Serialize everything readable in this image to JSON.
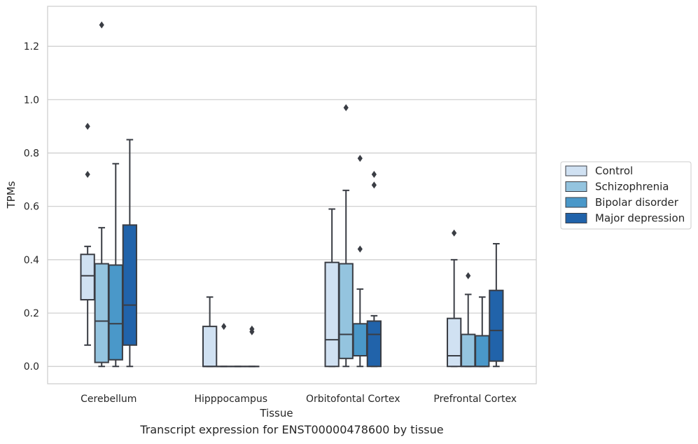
{
  "caption": "Transcript expression for ENST00000478600 by tissue",
  "chart_data": {
    "type": "box",
    "xlabel": "Tissue",
    "ylabel": "TPMs",
    "categories": [
      "Cerebellum",
      "Hipppocampus",
      "Orbitofontal Cortex",
      "Prefrontal Cortex"
    ],
    "ylim": [
      -0.065,
      1.35
    ],
    "yticks": [
      "0.0",
      "0.2",
      "0.4",
      "0.6",
      "0.8",
      "1.0",
      "1.2"
    ],
    "grid": "y",
    "legend_position": "right",
    "series": [
      {
        "name": "Control",
        "color": "#d0e1f2",
        "boxes": [
          {
            "whislo": 0.08,
            "q1": 0.25,
            "med": 0.34,
            "q3": 0.42,
            "whishi": 0.45,
            "fliers": [
              0.72,
              0.9
            ]
          },
          {
            "whislo": 0.0,
            "q1": 0.0,
            "med": 0.0,
            "q3": 0.15,
            "whishi": 0.26,
            "fliers": []
          },
          {
            "whislo": 0.0,
            "q1": 0.0,
            "med": 0.1,
            "q3": 0.39,
            "whishi": 0.59,
            "fliers": []
          },
          {
            "whislo": 0.0,
            "q1": 0.0,
            "med": 0.04,
            "q3": 0.18,
            "whishi": 0.4,
            "fliers": [
              0.5
            ]
          }
        ]
      },
      {
        "name": "Schizophrenia",
        "color": "#94c4df",
        "boxes": [
          {
            "whislo": 0.0,
            "q1": 0.015,
            "med": 0.17,
            "q3": 0.385,
            "whishi": 0.52,
            "fliers": [
              1.28
            ]
          },
          {
            "whislo": 0.0,
            "q1": 0.0,
            "med": 0.0,
            "q3": 0.0,
            "whishi": 0.0,
            "fliers": [
              0.15
            ]
          },
          {
            "whislo": 0.0,
            "q1": 0.03,
            "med": 0.12,
            "q3": 0.385,
            "whishi": 0.66,
            "fliers": [
              0.97
            ]
          },
          {
            "whislo": 0.0,
            "q1": 0.0,
            "med": 0.0,
            "q3": 0.12,
            "whishi": 0.27,
            "fliers": [
              0.34
            ]
          }
        ]
      },
      {
        "name": "Bipolar disorder",
        "color": "#4a98c9",
        "boxes": [
          {
            "whislo": 0.0,
            "q1": 0.025,
            "med": 0.16,
            "q3": 0.38,
            "whishi": 0.76,
            "fliers": []
          },
          {
            "whislo": 0.0,
            "q1": 0.0,
            "med": 0.0,
            "q3": 0.0,
            "whishi": 0.0,
            "fliers": []
          },
          {
            "whislo": 0.0,
            "q1": 0.04,
            "med": 0.04,
            "q3": 0.16,
            "whishi": 0.29,
            "fliers": [
              0.44,
              0.78
            ]
          },
          {
            "whislo": 0.0,
            "q1": 0.0,
            "med": 0.0,
            "q3": 0.115,
            "whishi": 0.26,
            "fliers": []
          }
        ]
      },
      {
        "name": "Major depression",
        "color": "#2163aa",
        "boxes": [
          {
            "whislo": 0.0,
            "q1": 0.08,
            "med": 0.23,
            "q3": 0.53,
            "whishi": 0.85,
            "fliers": []
          },
          {
            "whislo": 0.0,
            "q1": 0.0,
            "med": 0.0,
            "q3": 0.0,
            "whishi": 0.0,
            "fliers": [
              0.13,
              0.14
            ]
          },
          {
            "whislo": 0.0,
            "q1": 0.0,
            "med": 0.12,
            "q3": 0.17,
            "whishi": 0.19,
            "fliers": [
              0.68,
              0.72
            ]
          },
          {
            "whislo": 0.0,
            "q1": 0.02,
            "med": 0.135,
            "q3": 0.285,
            "whishi": 0.46,
            "fliers": []
          }
        ]
      }
    ]
  }
}
